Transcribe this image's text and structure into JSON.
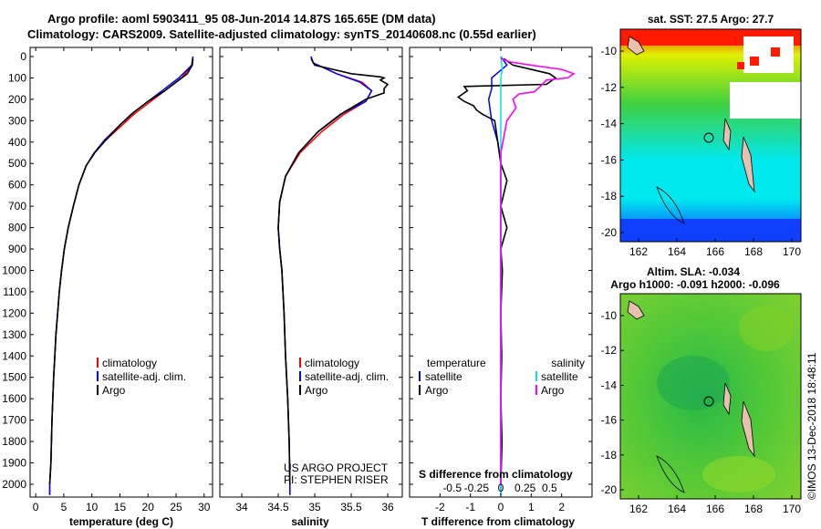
{
  "title": {
    "line1": "Argo profile: aoml 5903411_95 08-Jun-2014 14.87S 165.65E (DM data)",
    "line2": "Climatology: CARS2009. Satellite-adjusted climatology: synTS_20140608.nc (0.55d earlier)"
  },
  "colors": {
    "climatology": "#ff0000",
    "satellite": "#0000ff",
    "argo": "#000000",
    "satellite_s": "#00e5ee",
    "argo_s": "#ff00ff"
  },
  "depth_axis": {
    "ylim": [
      0,
      2060
    ],
    "ticks": [
      0,
      100,
      200,
      300,
      400,
      500,
      600,
      700,
      800,
      900,
      1000,
      1100,
      1200,
      1300,
      1400,
      1500,
      1600,
      1700,
      1800,
      1900,
      2000
    ]
  },
  "credit": {
    "line1": "US ARGO PROJECT",
    "line2": "PI: STEPHEN RISER"
  },
  "stamp": "©IMOS 13-Dec-2018 18:48:11",
  "chart_data": [
    {
      "type": "line",
      "id": "temperature",
      "xlabel": "temperature (deg C)",
      "xlim": [
        -1,
        31.5
      ],
      "xticks": [
        0,
        5,
        10,
        15,
        20,
        25,
        30
      ],
      "xtick_labels": [
        "0",
        "5",
        "10",
        "15",
        "20",
        "25",
        "30"
      ],
      "legend": [
        {
          "label": "climatology",
          "color": "#ff0000"
        },
        {
          "label": "satellite-adj. clim.",
          "color": "#0000ff"
        },
        {
          "label": "Argo",
          "color": "#000000"
        }
      ],
      "series": [
        {
          "name": "climatology",
          "color": "#ff0000",
          "points": [
            [
              28,
              0
            ],
            [
              27.8,
              40
            ],
            [
              26,
              100
            ],
            [
              23.5,
              150
            ],
            [
              20.5,
              210
            ],
            [
              17.5,
              270
            ],
            [
              15,
              330
            ],
            [
              12.5,
              390
            ],
            [
              10.5,
              450
            ],
            [
              9,
              510
            ],
            [
              7.7,
              600
            ],
            [
              6.7,
              700
            ],
            [
              5.8,
              800
            ],
            [
              5.1,
              900
            ],
            [
              4.6,
              1000
            ],
            [
              4.2,
              1100
            ],
            [
              3.9,
              1200
            ],
            [
              3.6,
              1300
            ],
            [
              3.4,
              1400
            ],
            [
              3.2,
              1500
            ],
            [
              3.05,
              1600
            ],
            [
              2.9,
              1700
            ],
            [
              2.8,
              1800
            ],
            [
              2.7,
              1900
            ],
            [
              2.5,
              2000
            ],
            [
              2.5,
              2050
            ]
          ]
        },
        {
          "name": "satellite-adj. clim.",
          "color": "#0000ff",
          "points": [
            [
              28,
              0
            ],
            [
              27.8,
              40
            ],
            [
              25.5,
              100
            ],
            [
              23,
              150
            ],
            [
              20,
              210
            ],
            [
              17,
              270
            ],
            [
              14.6,
              330
            ],
            [
              12.3,
              390
            ],
            [
              10.4,
              450
            ],
            [
              9,
              510
            ],
            [
              7.7,
              600
            ],
            [
              6.7,
              700
            ],
            [
              5.8,
              800
            ],
            [
              5.1,
              900
            ],
            [
              4.6,
              1000
            ],
            [
              4.2,
              1100
            ],
            [
              3.9,
              1200
            ],
            [
              3.6,
              1300
            ],
            [
              3.4,
              1400
            ],
            [
              3.2,
              1500
            ],
            [
              3.05,
              1600
            ],
            [
              2.9,
              1700
            ],
            [
              2.8,
              1800
            ],
            [
              2.7,
              1900
            ],
            [
              2.5,
              2000
            ],
            [
              2.5,
              2050
            ]
          ]
        },
        {
          "name": "Argo",
          "color": "#000000",
          "points": [
            [
              28,
              10
            ],
            [
              27.9,
              40
            ],
            [
              27,
              80
            ],
            [
              25,
              120
            ],
            [
              23,
              160
            ],
            [
              20,
              210
            ],
            [
              17.5,
              260
            ],
            [
              15,
              320
            ],
            [
              12.5,
              390
            ],
            [
              10.5,
              450
            ],
            [
              9,
              510
            ],
            [
              7.7,
              600
            ],
            [
              6.7,
              700
            ],
            [
              5.8,
              800
            ],
            [
              5.1,
              900
            ],
            [
              4.6,
              1000
            ],
            [
              4.2,
              1100
            ],
            [
              3.9,
              1200
            ],
            [
              3.6,
              1300
            ],
            [
              3.4,
              1400
            ],
            [
              3.2,
              1500
            ],
            [
              3.05,
              1600
            ],
            [
              2.9,
              1700
            ],
            [
              2.8,
              1800
            ],
            [
              2.7,
              1900
            ],
            [
              2.5,
              2000
            ]
          ]
        }
      ]
    },
    {
      "type": "line",
      "id": "salinity",
      "xlabel": "salinity",
      "xlim": [
        33.7,
        36.2
      ],
      "xticks": [
        34,
        34.5,
        35,
        35.5,
        36
      ],
      "xtick_labels": [
        "34",
        "34.5",
        "35",
        "35.5",
        "36"
      ],
      "legend": [
        {
          "label": "climatology",
          "color": "#ff0000"
        },
        {
          "label": "satellite-adj. clim.",
          "color": "#0000ff"
        },
        {
          "label": "Argo",
          "color": "#000000"
        }
      ],
      "series": [
        {
          "name": "climatology",
          "color": "#ff0000",
          "points": [
            [
              34.95,
              0
            ],
            [
              34.98,
              30
            ],
            [
              35.3,
              80
            ],
            [
              35.65,
              120
            ],
            [
              35.78,
              160
            ],
            [
              35.7,
              210
            ],
            [
              35.4,
              270
            ],
            [
              35.1,
              350
            ],
            [
              34.8,
              450
            ],
            [
              34.6,
              560
            ],
            [
              34.52,
              680
            ],
            [
              34.5,
              800
            ],
            [
              34.52,
              900
            ],
            [
              34.55,
              1000
            ],
            [
              34.58,
              1200
            ],
            [
              34.6,
              1400
            ],
            [
              34.63,
              1600
            ],
            [
              34.65,
              1800
            ],
            [
              34.66,
              2000
            ],
            [
              34.66,
              2050
            ]
          ]
        },
        {
          "name": "satellite-adj. clim.",
          "color": "#0000ff",
          "points": [
            [
              34.95,
              0
            ],
            [
              34.98,
              30
            ],
            [
              35.3,
              80
            ],
            [
              35.62,
              120
            ],
            [
              35.78,
              160
            ],
            [
              35.7,
              210
            ],
            [
              35.35,
              270
            ],
            [
              35.05,
              350
            ],
            [
              34.78,
              450
            ],
            [
              34.6,
              560
            ],
            [
              34.52,
              680
            ],
            [
              34.5,
              800
            ],
            [
              34.52,
              900
            ],
            [
              34.55,
              1000
            ],
            [
              34.58,
              1200
            ],
            [
              34.6,
              1400
            ],
            [
              34.63,
              1600
            ],
            [
              34.65,
              1800
            ],
            [
              34.66,
              2000
            ],
            [
              34.66,
              2050
            ]
          ]
        },
        {
          "name": "Argo",
          "color": "#000000",
          "points": [
            [
              34.95,
              10
            ],
            [
              35,
              40
            ],
            [
              35.5,
              80
            ],
            [
              35.9,
              95
            ],
            [
              35.95,
              100
            ],
            [
              35.9,
              110
            ],
            [
              36,
              130
            ],
            [
              35.95,
              150
            ],
            [
              35.95,
              170
            ],
            [
              35.7,
              200
            ],
            [
              35.4,
              260
            ],
            [
              35.05,
              350
            ],
            [
              34.78,
              450
            ],
            [
              34.6,
              560
            ],
            [
              34.52,
              680
            ],
            [
              34.5,
              800
            ],
            [
              34.52,
              900
            ],
            [
              34.55,
              1000
            ],
            [
              34.58,
              1200
            ],
            [
              34.6,
              1400
            ],
            [
              34.63,
              1600
            ],
            [
              34.65,
              1800
            ],
            [
              34.66,
              2000
            ]
          ]
        }
      ]
    },
    {
      "type": "line",
      "id": "differences",
      "xlabel": "T difference from climatology",
      "xlabel_top": "S difference from climatology",
      "xlim": [
        -3,
        3
      ],
      "xticks": [
        -2,
        -1,
        0,
        1,
        2
      ],
      "xtick_labels": [
        "-2",
        "-1",
        "0",
        "1",
        "2"
      ],
      "s_xticks": [
        -0.5,
        -0.25,
        0,
        0.25,
        0.5
      ],
      "s_xtick_labels": [
        "-0.5",
        "-0.25",
        "0",
        "0.25",
        "0.5"
      ],
      "legend_left_title": "temperature",
      "legend_right_title": "salinity",
      "legend_left": [
        {
          "label": "satellite",
          "color": "#0000ff"
        },
        {
          "label": "Argo",
          "color": "#000000"
        }
      ],
      "legend_right": [
        {
          "label": "satellite",
          "color": "#00e5ee"
        },
        {
          "label": "Argo",
          "color": "#ff00ff"
        }
      ],
      "series": [
        {
          "name": "satellite",
          "color": "#0000ff",
          "points": [
            [
              0,
              0
            ],
            [
              0.2,
              40
            ],
            [
              -0.3,
              100
            ],
            [
              -0.3,
              150
            ],
            [
              -0.4,
              200
            ],
            [
              -0.3,
              300
            ],
            [
              -0.1,
              400
            ],
            [
              0,
              500
            ],
            [
              0,
              2050
            ]
          ]
        },
        {
          "name": "Argo",
          "color": "#000000",
          "points": [
            [
              0.1,
              10
            ],
            [
              0.4,
              40
            ],
            [
              1.6,
              80
            ],
            [
              1.8,
              100
            ],
            [
              1.5,
              130
            ],
            [
              -1.2,
              140
            ],
            [
              -1.1,
              160
            ],
            [
              -1.4,
              190
            ],
            [
              -1.2,
              210
            ],
            [
              -0.9,
              230
            ],
            [
              -0.8,
              250
            ],
            [
              -0.6,
              270
            ],
            [
              -0.2,
              300
            ],
            [
              -0.1,
              400
            ],
            [
              0,
              500
            ],
            [
              0.2,
              580
            ],
            [
              0,
              700
            ],
            [
              0.2,
              800
            ],
            [
              0,
              900
            ],
            [
              0.05,
              1000
            ],
            [
              0,
              1200
            ],
            [
              0.03,
              1400
            ],
            [
              0,
              1600
            ],
            [
              0.04,
              1800
            ],
            [
              0,
              2000
            ]
          ]
        },
        {
          "name": "satellite",
          "color": "#00e5ee",
          "points": [
            [
              0,
              0
            ],
            [
              0.05,
              60
            ],
            [
              0,
              100
            ],
            [
              0,
              2050
            ]
          ]
        },
        {
          "name": "Argo",
          "color": "#ff00ff",
          "points": [
            [
              0,
              10
            ],
            [
              0.3,
              25
            ],
            [
              1,
              40
            ],
            [
              2,
              60
            ],
            [
              2.4,
              80
            ],
            [
              2.2,
              100
            ],
            [
              1.5,
              110
            ],
            [
              1.3,
              140
            ],
            [
              1.1,
              165
            ],
            [
              0.6,
              175
            ],
            [
              0.4,
              200
            ],
            [
              0.5,
              240
            ],
            [
              0.2,
              300
            ],
            [
              0,
              450
            ],
            [
              0,
              2000
            ]
          ]
        }
      ]
    }
  ],
  "map_top": {
    "title": "sat. SST: 27.5 Argo: 27.7",
    "x_ticks": [
      "162",
      "164",
      "166",
      "168",
      "170"
    ],
    "y_ticks": [
      "-10",
      "-12",
      "-14",
      "-16",
      "-18",
      "-20"
    ]
  },
  "map_bottom": {
    "title_line1": "Altim. SLA: -0.034",
    "title_line2": "Argo h1000: -0.091 h2000: -0.096",
    "x_ticks": [
      "162",
      "164",
      "166",
      "168",
      "170"
    ],
    "y_ticks": [
      "-10",
      "-12",
      "-14",
      "-16",
      "-18",
      "-20"
    ]
  }
}
